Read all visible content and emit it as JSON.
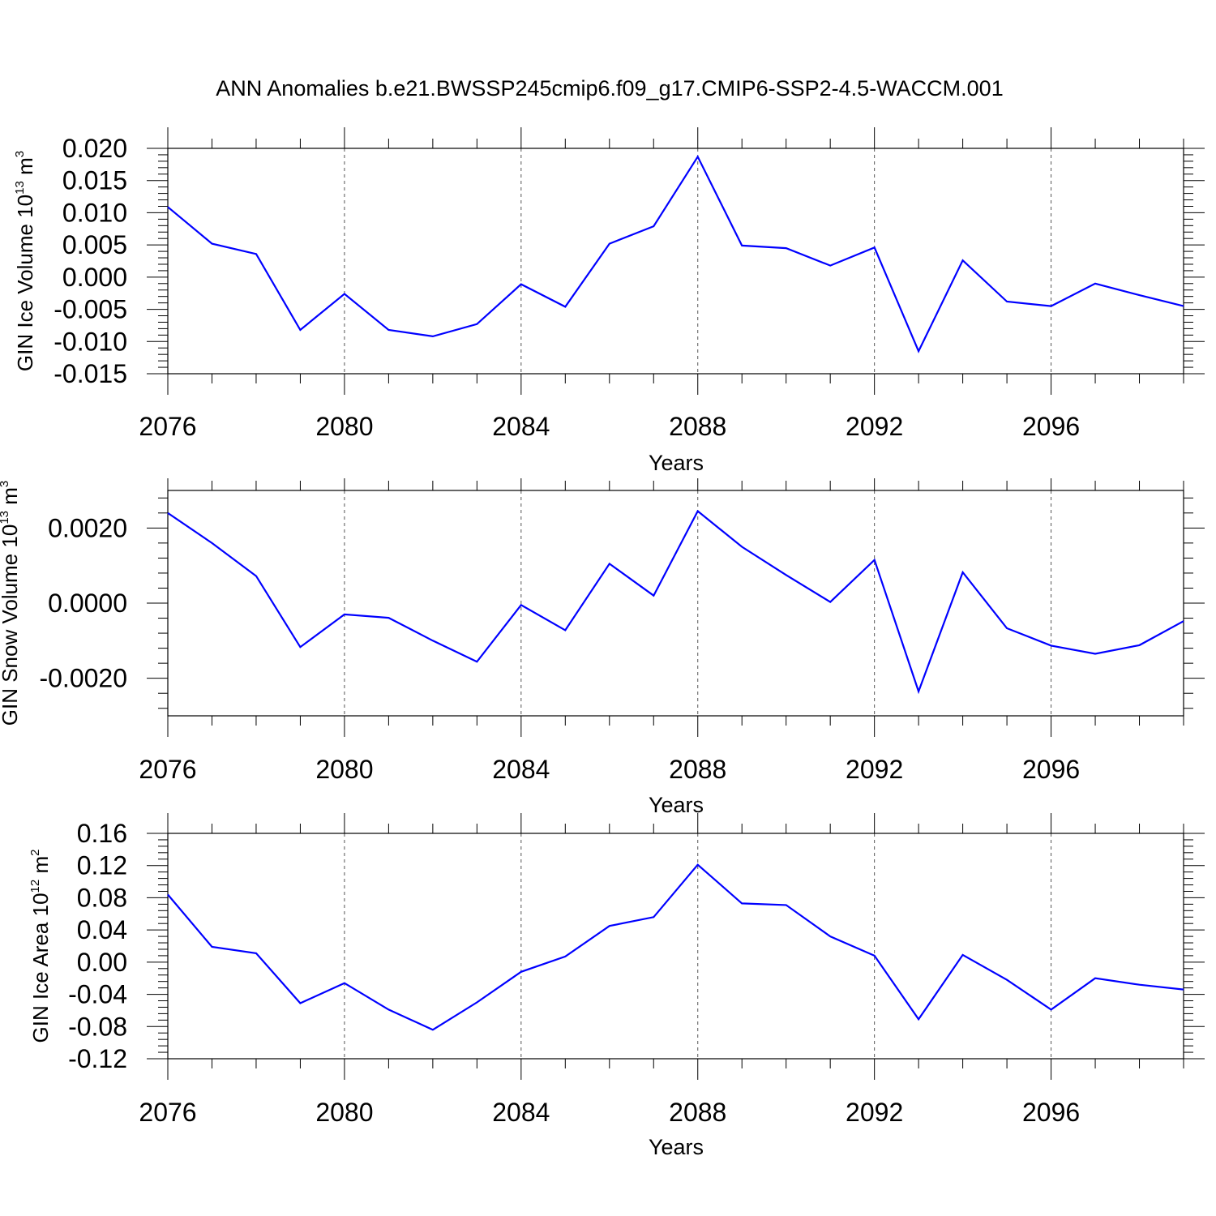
{
  "chart_data": {
    "title": "ANN Anomalies b.e21.BWSSP245cmip6.f09_g17.CMIP6-SSP2-4.5-WACCM.001",
    "line_color": "#0000ff",
    "panels": [
      {
        "type": "line",
        "ylabel": "GIN Ice Volume 10",
        "ylabel_exp": "13",
        "ylabel_unit": "m",
        "ylabel_unit_exp": "3",
        "xlabel": "Years",
        "xlim": [
          2076,
          2099
        ],
        "ylim": [
          -0.015,
          0.02
        ],
        "xticks": [
          2076,
          2080,
          2084,
          2088,
          2092,
          2096
        ],
        "xtick_labels": [
          "2076",
          "2080",
          "2084",
          "2088",
          "2092",
          "2096"
        ],
        "yticks": [
          -0.015,
          -0.01,
          -0.005,
          0.0,
          0.005,
          0.01,
          0.015,
          0.02
        ],
        "ytick_labels": [
          "-0.015",
          "-0.010",
          "-0.005",
          "0.000",
          "0.005",
          "0.010",
          "0.015",
          "0.020"
        ],
        "grid": "x dashed",
        "x": [
          2076,
          2077,
          2078,
          2079,
          2080,
          2081,
          2082,
          2083,
          2084,
          2085,
          2086,
          2087,
          2088,
          2089,
          2090,
          2091,
          2092,
          2093,
          2094,
          2095,
          2096,
          2097,
          2098,
          2099
        ],
        "y": [
          0.0109,
          0.0052,
          0.0036,
          -0.0082,
          -0.0026,
          -0.0082,
          -0.0092,
          -0.0073,
          -0.0011,
          -0.0046,
          0.0052,
          0.0079,
          0.0187,
          0.0049,
          0.0045,
          0.0018,
          0.0046,
          -0.0115,
          0.0026,
          -0.0038,
          -0.0045,
          -0.001,
          -0.0028,
          -0.0045
        ]
      },
      {
        "type": "line",
        "ylabel": "GIN Snow Volume 10",
        "ylabel_exp": "13",
        "ylabel_unit": "m",
        "ylabel_unit_exp": "3",
        "xlabel": "Years",
        "xlim": [
          2076,
          2099
        ],
        "ylim": [
          -0.003,
          0.003
        ],
        "xticks": [
          2076,
          2080,
          2084,
          2088,
          2092,
          2096
        ],
        "xtick_labels": [
          "2076",
          "2080",
          "2084",
          "2088",
          "2092",
          "2096"
        ],
        "yticks": [
          -0.002,
          0.0,
          0.002
        ],
        "ytick_labels": [
          "-0.0020",
          "0.0000",
          "0.0020"
        ],
        "grid": "x dashed",
        "x": [
          2076,
          2077,
          2078,
          2079,
          2080,
          2081,
          2082,
          2083,
          2084,
          2085,
          2086,
          2087,
          2088,
          2089,
          2090,
          2091,
          2092,
          2093,
          2094,
          2095,
          2096,
          2097,
          2098,
          2099
        ],
        "y": [
          0.0024,
          0.0016,
          0.00072,
          -0.00117,
          -0.0003,
          -0.00039,
          -0.001,
          -0.00156,
          -5e-05,
          -0.00072,
          0.00105,
          0.0002,
          0.00245,
          0.0015,
          0.00075,
          3e-05,
          0.00115,
          -0.00235,
          0.00082,
          -0.00067,
          -0.00113,
          -0.00135,
          -0.00112,
          -0.00048
        ]
      },
      {
        "type": "line",
        "ylabel": "GIN Ice Area 10",
        "ylabel_exp": "12",
        "ylabel_unit": "m",
        "ylabel_unit_exp": "2",
        "xlabel": "Years",
        "xlim": [
          2076,
          2099
        ],
        "ylim": [
          -0.12,
          0.16
        ],
        "xticks": [
          2076,
          2080,
          2084,
          2088,
          2092,
          2096
        ],
        "xtick_labels": [
          "2076",
          "2080",
          "2084",
          "2088",
          "2092",
          "2096"
        ],
        "yticks": [
          -0.12,
          -0.08,
          -0.04,
          0.0,
          0.04,
          0.08,
          0.12,
          0.16
        ],
        "ytick_labels": [
          "-0.12",
          "-0.08",
          "-0.04",
          "0.00",
          "0.04",
          "0.08",
          "0.12",
          "0.16"
        ],
        "grid": "x dashed",
        "x": [
          2076,
          2077,
          2078,
          2079,
          2080,
          2081,
          2082,
          2083,
          2084,
          2085,
          2086,
          2087,
          2088,
          2089,
          2090,
          2091,
          2092,
          2093,
          2094,
          2095,
          2096,
          2097,
          2098,
          2099
        ],
        "y": [
          0.084,
          0.019,
          0.011,
          -0.051,
          -0.026,
          -0.059,
          -0.084,
          -0.05,
          -0.012,
          0.007,
          0.045,
          0.056,
          0.121,
          0.073,
          0.071,
          0.032,
          0.008,
          -0.071,
          0.009,
          -0.022,
          -0.059,
          -0.02,
          -0.028,
          -0.034
        ]
      }
    ]
  }
}
